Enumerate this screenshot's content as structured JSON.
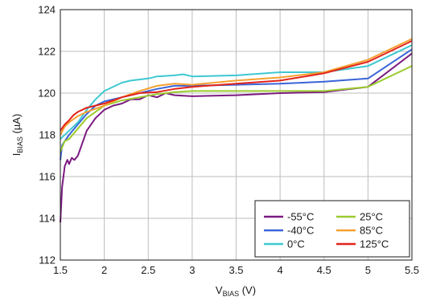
{
  "chart_data": {
    "type": "line",
    "xlabel": {
      "main": "V",
      "sub": "BIAS",
      "unit": " (V)"
    },
    "ylabel": {
      "main": "I",
      "sub": "BIAS",
      "unit": " (µA)"
    },
    "xlim": [
      1.5,
      5.5
    ],
    "ylim": [
      112,
      124
    ],
    "xticks": [
      "1.5",
      "2",
      "2.5",
      "3",
      "3.5",
      "4",
      "4.5",
      "5",
      "5.5"
    ],
    "yticks": [
      "112",
      "114",
      "116",
      "118",
      "120",
      "122",
      "124"
    ],
    "grid": true,
    "legend_position": "bottom-right",
    "series": [
      {
        "name": "-55°C",
        "color": "#7b1a80",
        "points": [
          [
            1.5,
            113.8
          ],
          [
            1.52,
            115.5
          ],
          [
            1.55,
            116.5
          ],
          [
            1.58,
            116.8
          ],
          [
            1.6,
            116.6
          ],
          [
            1.63,
            116.9
          ],
          [
            1.66,
            116.8
          ],
          [
            1.7,
            117.0
          ],
          [
            1.75,
            117.6
          ],
          [
            1.8,
            118.2
          ],
          [
            1.9,
            118.8
          ],
          [
            2.0,
            119.2
          ],
          [
            2.1,
            119.4
          ],
          [
            2.2,
            119.5
          ],
          [
            2.3,
            119.7
          ],
          [
            2.4,
            119.7
          ],
          [
            2.5,
            119.9
          ],
          [
            2.6,
            119.8
          ],
          [
            2.7,
            120.0
          ],
          [
            2.8,
            119.9
          ],
          [
            3.0,
            119.85
          ],
          [
            3.5,
            119.9
          ],
          [
            4.0,
            120.0
          ],
          [
            4.5,
            120.05
          ],
          [
            5.0,
            120.3
          ],
          [
            5.5,
            121.9
          ]
        ]
      },
      {
        "name": "-40°C",
        "color": "#3a64d8",
        "points": [
          [
            1.5,
            116.8
          ],
          [
            1.52,
            117.5
          ],
          [
            1.55,
            117.7
          ],
          [
            1.6,
            118.0
          ],
          [
            1.7,
            118.5
          ],
          [
            1.8,
            119.0
          ],
          [
            1.9,
            119.4
          ],
          [
            2.0,
            119.6
          ],
          [
            2.2,
            119.8
          ],
          [
            2.4,
            120.0
          ],
          [
            2.6,
            120.2
          ],
          [
            2.8,
            120.35
          ],
          [
            3.0,
            120.35
          ],
          [
            3.5,
            120.4
          ],
          [
            4.0,
            120.45
          ],
          [
            4.5,
            120.55
          ],
          [
            5.0,
            120.7
          ],
          [
            5.5,
            122.1
          ]
        ]
      },
      {
        "name": "0°C",
        "color": "#3ec8d2",
        "points": [
          [
            1.5,
            117.8
          ],
          [
            1.55,
            118.0
          ],
          [
            1.6,
            118.2
          ],
          [
            1.65,
            118.4
          ],
          [
            1.7,
            118.6
          ],
          [
            1.8,
            119.2
          ],
          [
            1.9,
            119.7
          ],
          [
            2.0,
            120.1
          ],
          [
            2.2,
            120.5
          ],
          [
            2.3,
            120.6
          ],
          [
            2.5,
            120.7
          ],
          [
            2.6,
            120.8
          ],
          [
            2.8,
            120.85
          ],
          [
            2.9,
            120.9
          ],
          [
            3.0,
            120.8
          ],
          [
            3.5,
            120.85
          ],
          [
            4.0,
            121.0
          ],
          [
            4.5,
            121.0
          ],
          [
            5.0,
            121.3
          ],
          [
            5.5,
            122.3
          ]
        ]
      },
      {
        "name": "25°C",
        "color": "#9ccc2f",
        "points": [
          [
            1.5,
            117.2
          ],
          [
            1.55,
            117.7
          ],
          [
            1.6,
            117.8
          ],
          [
            1.7,
            118.3
          ],
          [
            1.8,
            118.8
          ],
          [
            1.9,
            119.1
          ],
          [
            2.0,
            119.4
          ],
          [
            2.2,
            119.65
          ],
          [
            2.4,
            119.8
          ],
          [
            2.6,
            119.95
          ],
          [
            2.8,
            120.05
          ],
          [
            3.0,
            120.1
          ],
          [
            3.5,
            120.1
          ],
          [
            4.0,
            120.1
          ],
          [
            4.5,
            120.1
          ],
          [
            5.0,
            120.3
          ],
          [
            5.5,
            121.3
          ]
        ]
      },
      {
        "name": "85°C",
        "color": "#f5a030",
        "points": [
          [
            1.5,
            118.0
          ],
          [
            1.55,
            118.4
          ],
          [
            1.6,
            118.6
          ],
          [
            1.7,
            118.9
          ],
          [
            1.8,
            119.1
          ],
          [
            2.0,
            119.4
          ],
          [
            2.2,
            119.8
          ],
          [
            2.4,
            120.1
          ],
          [
            2.6,
            120.35
          ],
          [
            2.8,
            120.45
          ],
          [
            3.0,
            120.4
          ],
          [
            3.5,
            120.6
          ],
          [
            4.0,
            120.75
          ],
          [
            4.5,
            121.0
          ],
          [
            5.0,
            121.6
          ],
          [
            5.5,
            122.6
          ]
        ]
      },
      {
        "name": "125°C",
        "color": "#e2231a",
        "points": [
          [
            1.5,
            118.2
          ],
          [
            1.55,
            118.5
          ],
          [
            1.6,
            118.7
          ],
          [
            1.65,
            118.95
          ],
          [
            1.7,
            119.1
          ],
          [
            1.8,
            119.3
          ],
          [
            1.9,
            119.4
          ],
          [
            2.0,
            119.5
          ],
          [
            2.2,
            119.8
          ],
          [
            2.4,
            120.0
          ],
          [
            2.6,
            120.05
          ],
          [
            2.8,
            120.2
          ],
          [
            3.0,
            120.3
          ],
          [
            3.5,
            120.45
          ],
          [
            4.0,
            120.6
          ],
          [
            4.5,
            120.95
          ],
          [
            5.0,
            121.5
          ],
          [
            5.5,
            122.5
          ]
        ]
      }
    ]
  }
}
